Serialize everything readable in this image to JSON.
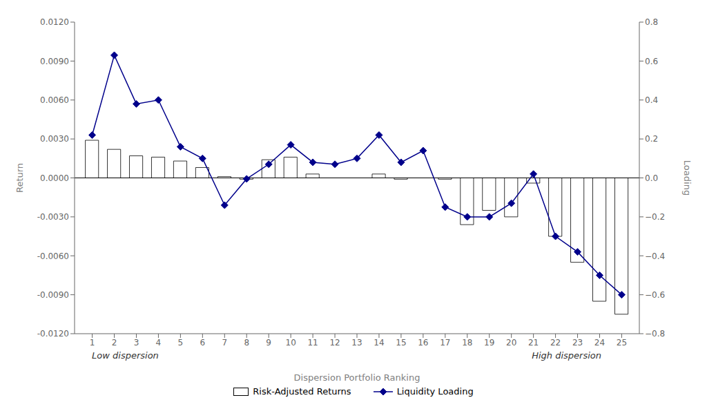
{
  "chart_data": {
    "type": "bar",
    "xlabel": "Dispersion Portfolio Ranking",
    "ylabel": "Return",
    "y2label": "Loading",
    "x": [
      1,
      2,
      3,
      4,
      5,
      6,
      7,
      8,
      9,
      10,
      11,
      12,
      13,
      14,
      15,
      16,
      17,
      18,
      19,
      20,
      21,
      22,
      23,
      24,
      25
    ],
    "xlim": [
      0.2,
      25.8
    ],
    "xticks": [
      1,
      2,
      3,
      4,
      5,
      6,
      7,
      8,
      9,
      10,
      11,
      12,
      13,
      14,
      15,
      16,
      17,
      18,
      19,
      20,
      21,
      22,
      23,
      24,
      25
    ],
    "ylim": [
      -0.012,
      0.012
    ],
    "yticks": [
      {
        "value": -0.012,
        "label": "-0.0120"
      },
      {
        "value": -0.009,
        "label": "-0.0090"
      },
      {
        "value": -0.006,
        "label": "-0.0060"
      },
      {
        "value": -0.003,
        "label": "-0.0030"
      },
      {
        "value": 0.0,
        "label": "0.0000"
      },
      {
        "value": 0.003,
        "label": "0.0030"
      },
      {
        "value": 0.006,
        "label": "0.0060"
      },
      {
        "value": 0.009,
        "label": "0.0090"
      },
      {
        "value": 0.012,
        "label": "0.0120"
      }
    ],
    "y2lim": [
      -0.8,
      0.8
    ],
    "y2ticks": [
      {
        "value": -0.8,
        "label": "−0.8"
      },
      {
        "value": -0.6,
        "label": "−0.6"
      },
      {
        "value": -0.4,
        "label": "−0.4"
      },
      {
        "value": -0.2,
        "label": "−0.2"
      },
      {
        "value": 0.0,
        "label": "0.0"
      },
      {
        "value": 0.2,
        "label": "0.2"
      },
      {
        "value": 0.4,
        "label": "0.4"
      },
      {
        "value": 0.6,
        "label": "0.6"
      },
      {
        "value": 0.8,
        "label": "0.8"
      }
    ],
    "series": [
      {
        "name": "Risk-Adjusted Returns",
        "type": "bar",
        "color": "#ffffff",
        "values": [
          0.0029,
          0.0022,
          0.0017,
          0.0016,
          0.0013,
          0.0008,
          0.0001,
          -0.0001,
          0.0014,
          0.0016,
          0.0003,
          0.0,
          0.0,
          0.0003,
          -0.0001,
          0.0,
          -0.0001,
          -0.0036,
          -0.0025,
          -0.003,
          -0.0004,
          -0.0045,
          -0.0065,
          -0.0095,
          -0.0105
        ]
      },
      {
        "name": "Liquidity Loading",
        "type": "line",
        "color": "#00008B",
        "marker": "diamond",
        "axis": "y2",
        "values": [
          0.22,
          0.63,
          0.38,
          0.4,
          0.16,
          0.1,
          -0.14,
          -0.005,
          0.07,
          0.17,
          0.08,
          0.07,
          0.1,
          0.22,
          0.08,
          0.14,
          -0.15,
          -0.2,
          -0.2,
          -0.13,
          0.02,
          -0.3,
          -0.38,
          -0.5,
          -0.6
        ]
      }
    ],
    "annotations": [
      {
        "text": "Low dispersion",
        "x": 2.5
      },
      {
        "text": "High dispersion",
        "x": 22.5
      }
    ],
    "grid": false,
    "legend": "bottom"
  }
}
